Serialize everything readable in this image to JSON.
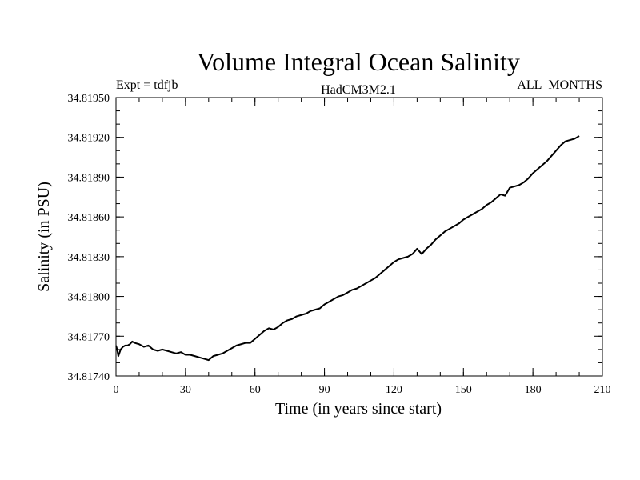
{
  "chart_data": {
    "type": "line",
    "title": "Volume Integral Ocean Salinity",
    "subtitle_left": "Expt = tdfjb",
    "subtitle_center": "HadCM3M2.1",
    "subtitle_right": "ALL_MONTHS",
    "xlabel": "Time (in years since start)",
    "ylabel": "Salinity (in PSU)",
    "xlim": [
      0,
      210
    ],
    "ylim": [
      34.8174,
      34.8195
    ],
    "x_ticks": [
      0,
      30,
      60,
      90,
      120,
      150,
      180,
      210
    ],
    "x_tick_labels": [
      "0",
      "30",
      "60",
      "90",
      "120",
      "150",
      "180",
      "210"
    ],
    "y_ticks": [
      34.8174,
      34.8177,
      34.818,
      34.8183,
      34.8186,
      34.8189,
      34.8192,
      34.8195
    ],
    "y_tick_labels": [
      "34.81740",
      "34.81770",
      "34.81800",
      "34.81830",
      "34.81860",
      "34.81890",
      "34.81920",
      "34.81950"
    ],
    "x_minor_step": 10,
    "y_minor_step": 0.0001,
    "grid": false,
    "series": [
      {
        "name": "Salinity",
        "color": "#000000",
        "x": [
          0,
          0.5,
          1,
          2,
          3,
          4,
          5,
          6,
          7,
          8,
          10,
          12,
          14,
          16,
          18,
          20,
          22,
          24,
          26,
          28,
          30,
          32,
          34,
          36,
          38,
          40,
          42,
          44,
          46,
          48,
          50,
          52,
          54,
          56,
          58,
          60,
          62,
          64,
          66,
          68,
          70,
          72,
          74,
          76,
          78,
          80,
          82,
          84,
          86,
          88,
          90,
          92,
          94,
          96,
          98,
          100,
          102,
          104,
          106,
          108,
          110,
          112,
          114,
          116,
          118,
          120,
          122,
          124,
          126,
          128,
          130,
          132,
          134,
          136,
          138,
          140,
          142,
          144,
          146,
          148,
          150,
          152,
          154,
          156,
          158,
          160,
          162,
          164,
          166,
          168,
          170,
          172,
          174,
          176,
          178,
          180,
          182,
          184,
          186,
          188,
          190,
          192,
          194,
          196,
          198,
          200
        ],
        "values": [
          34.81763,
          34.8176,
          34.81755,
          34.8176,
          34.81762,
          34.81763,
          34.81763,
          34.81764,
          34.81766,
          34.81765,
          34.81764,
          34.81762,
          34.81763,
          34.8176,
          34.81759,
          34.8176,
          34.81759,
          34.81758,
          34.81757,
          34.81758,
          34.81756,
          34.81756,
          34.81755,
          34.81754,
          34.81753,
          34.81752,
          34.81755,
          34.81756,
          34.81757,
          34.81759,
          34.81761,
          34.81763,
          34.81764,
          34.81765,
          34.81765,
          34.81768,
          34.81771,
          34.81774,
          34.81776,
          34.81775,
          34.81777,
          34.8178,
          34.81782,
          34.81783,
          34.81785,
          34.81786,
          34.81787,
          34.81789,
          34.8179,
          34.81791,
          34.81794,
          34.81796,
          34.81798,
          34.818,
          34.81801,
          34.81803,
          34.81805,
          34.81806,
          34.81808,
          34.8181,
          34.81812,
          34.81814,
          34.81817,
          34.8182,
          34.81823,
          34.81826,
          34.81828,
          34.81829,
          34.8183,
          34.81832,
          34.81836,
          34.81832,
          34.81836,
          34.81839,
          34.81843,
          34.81846,
          34.81849,
          34.81851,
          34.81853,
          34.81855,
          34.81858,
          34.8186,
          34.81862,
          34.81864,
          34.81866,
          34.81869,
          34.81871,
          34.81874,
          34.81877,
          34.81876,
          34.81882,
          34.81883,
          34.81884,
          34.81886,
          34.81889,
          34.81893,
          34.81896,
          34.81899,
          34.81902,
          34.81906,
          34.8191,
          34.81914,
          34.81917,
          34.81918,
          34.81919,
          34.81921
        ]
      }
    ]
  }
}
